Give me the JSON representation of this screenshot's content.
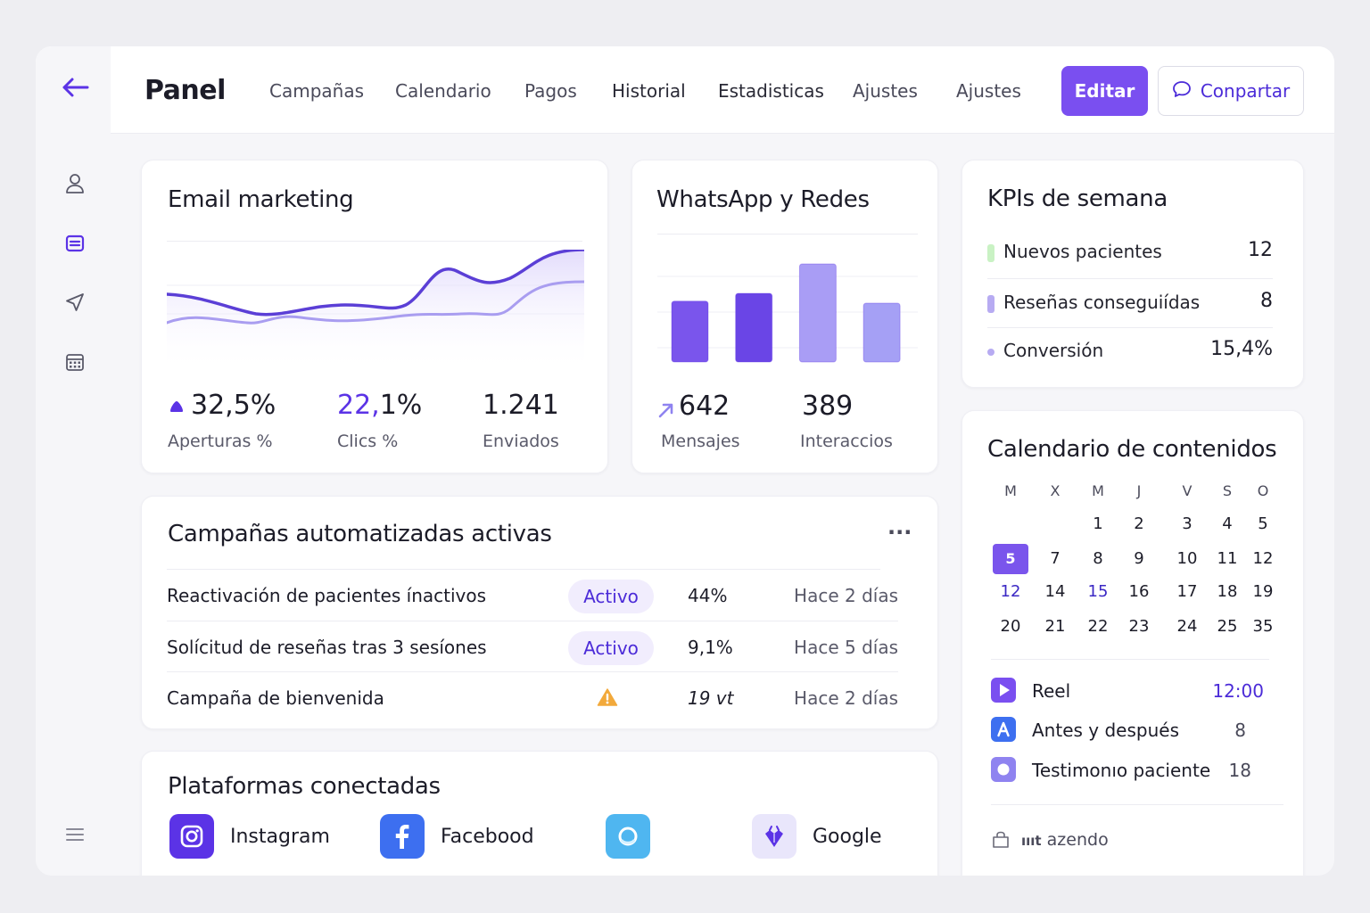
{
  "header": {
    "title": "Panel",
    "nav": [
      "Campañas",
      "Calendario",
      "Pagos",
      "Historial",
      "Estadisticas",
      "Ajustes",
      "Ajustes"
    ],
    "edit_label": "Editar",
    "share_label": "Conpartar"
  },
  "sidebar": {
    "icons": [
      "user-icon",
      "inbox-icon",
      "send-icon",
      "calendar-grid-icon",
      "menu-icon"
    ]
  },
  "email": {
    "title": "Email marketing",
    "metrics": [
      {
        "value": "32,5%",
        "label": "Aperturas %"
      },
      {
        "value_accent": "22,",
        "value_rest": "1%",
        "label": "Clics %"
      },
      {
        "value": "1.241",
        "label": "Enviados"
      }
    ]
  },
  "whatsapp": {
    "title": "WhatsApp y Redes",
    "bars": [
      0.62,
      0.7,
      1.0,
      0.6
    ],
    "metrics": [
      {
        "value": "642",
        "label": "Mensajes"
      },
      {
        "value": "389",
        "label": "Interaccios"
      }
    ]
  },
  "kpis": {
    "title": "KPIs de semana",
    "rows": [
      {
        "label": "Nuevos  pacientes",
        "value": "12",
        "color": "#c9f2c4"
      },
      {
        "label": "Reseñas conseguiídas",
        "value": "8",
        "color": "#b7abf2"
      },
      {
        "label": "Conversión",
        "value": "15,4%",
        "color": "#b7abf2"
      }
    ]
  },
  "campaigns": {
    "title": "Campañas automatizadas activas",
    "more_label": "···",
    "rows": [
      {
        "name": "Reactivación de pacientes ínactivos",
        "status": "Activo",
        "pct": "44%",
        "when": "Hace 2 días"
      },
      {
        "name": "Solícitud de reseñas tras 3 sesíones",
        "status": "Activo",
        "pct": "9,1%",
        "when": "Hace 5 días"
      },
      {
        "name": "Campaña de bienvenida",
        "status": "",
        "pct": "19 vt",
        "when": "Hace 2 días"
      }
    ]
  },
  "platforms": {
    "title": "Plataformas conectadas",
    "items": [
      {
        "name": "Instagram",
        "icon": "instagram-icon",
        "color": "#5b33e6"
      },
      {
        "name": "Facebood",
        "icon": "facebook-icon",
        "color": "#3d6ff0"
      },
      {
        "name": "",
        "icon": "circle-app-icon",
        "color": "#4fb6f0"
      },
      {
        "name": "Google",
        "icon": "google-icon",
        "color": "#e9e6fb"
      }
    ]
  },
  "calendar": {
    "title": "Calendario de contenidos",
    "weekdays": [
      "M",
      "X",
      "M",
      "J",
      "V",
      "S",
      "O"
    ],
    "weeks": [
      [
        "",
        "",
        "1",
        "2",
        "3",
        "4",
        "5"
      ],
      [
        "5",
        "7",
        "8",
        "9",
        "10",
        "11",
        "12"
      ],
      [
        "12",
        "14",
        "15",
        "16",
        "17",
        "18",
        "19"
      ],
      [
        "20",
        "21",
        "22",
        "23",
        "24",
        "25",
        "35"
      ]
    ],
    "events": [
      {
        "label": "Reel",
        "value": "12:00",
        "icon": "play-icon",
        "color": "#7a4ff0"
      },
      {
        "label": "Antes y después",
        "value": "8",
        "icon": "letter-a-icon",
        "color": "#3d6ff0"
      },
      {
        "label": "Testimonıo paciente",
        "value": "18",
        "icon": "circle-icon",
        "color": "#8f83f0"
      }
    ],
    "footer_prefix": "ıııt",
    "footer_label": "azendo"
  }
}
